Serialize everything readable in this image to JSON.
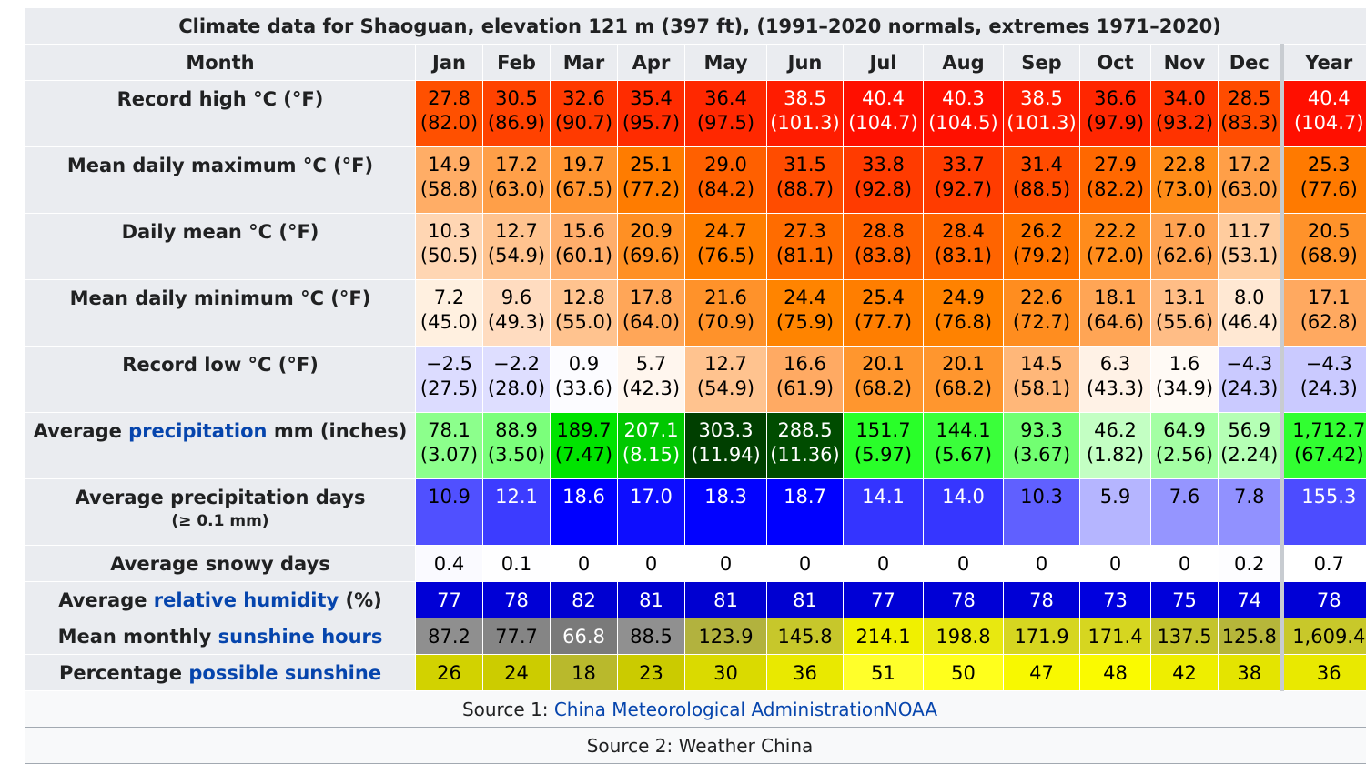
{
  "caption": "Climate data for Shaoguan, elevation 121 m (397 ft), (1991–2020 normals, extremes 1971–2020)",
  "month_header": "Month",
  "months": [
    "Jan",
    "Feb",
    "Mar",
    "Apr",
    "May",
    "Jun",
    "Jul",
    "Aug",
    "Sep",
    "Oct",
    "Nov",
    "Dec"
  ],
  "year_header": "Year",
  "rows": {
    "record_high": {
      "label": "Record high °C (°F)",
      "values": [
        [
          "27.8",
          "(82.0)"
        ],
        [
          "30.5",
          "(86.9)"
        ],
        [
          "32.6",
          "(90.7)"
        ],
        [
          "35.4",
          "(95.7)"
        ],
        [
          "36.4",
          "(97.5)"
        ],
        [
          "38.5",
          "(101.3)"
        ],
        [
          "40.4",
          "(104.7)"
        ],
        [
          "40.3",
          "(104.5)"
        ],
        [
          "38.5",
          "(101.3)"
        ],
        [
          "36.6",
          "(97.9)"
        ],
        [
          "34.0",
          "(93.2)"
        ],
        [
          "28.5",
          "(83.3)"
        ]
      ],
      "year": [
        "40.4",
        "(104.7)"
      ],
      "colors": [
        "#ff5000",
        "#ff4200",
        "#ff3a00",
        "#ff2c00",
        "#ff2800",
        "#ff1c00",
        "#ff0f00",
        "#ff1000",
        "#ff1c00",
        "#ff2600",
        "#ff3300",
        "#ff4c00"
      ],
      "year_color": "#ff0f00",
      "text_colors": [
        "#000000",
        "#000000",
        "#000000",
        "#000000",
        "#000000",
        "#ffffff",
        "#ffffff",
        "#ffffff",
        "#ffffff",
        "#000000",
        "#000000",
        "#000000"
      ],
      "year_text_color": "#ffffff"
    },
    "mean_max": {
      "label": "Mean daily maximum °C (°F)",
      "values": [
        [
          "14.9",
          "(58.8)"
        ],
        [
          "17.2",
          "(63.0)"
        ],
        [
          "19.7",
          "(67.5)"
        ],
        [
          "25.1",
          "(77.2)"
        ],
        [
          "29.0",
          "(84.2)"
        ],
        [
          "31.5",
          "(88.7)"
        ],
        [
          "33.8",
          "(92.8)"
        ],
        [
          "33.7",
          "(92.7)"
        ],
        [
          "31.4",
          "(88.5)"
        ],
        [
          "27.9",
          "(82.2)"
        ],
        [
          "22.8",
          "(73.0)"
        ],
        [
          "17.2",
          "(63.0)"
        ]
      ],
      "year": [
        "25.3",
        "(77.6)"
      ],
      "colors": [
        "#ffad66",
        "#ff9f48",
        "#ff9430",
        "#ff7c00",
        "#ff6000",
        "#ff4c00",
        "#ff3b00",
        "#ff3c00",
        "#ff4c00",
        "#ff6800",
        "#ff8c18",
        "#ff9f48"
      ],
      "year_color": "#ff7a00",
      "text_colors": [
        "#000000",
        "#000000",
        "#000000",
        "#000000",
        "#000000",
        "#000000",
        "#000000",
        "#000000",
        "#000000",
        "#000000",
        "#000000",
        "#000000"
      ],
      "year_text_color": "#000000"
    },
    "daily_mean": {
      "label": "Daily mean °C (°F)",
      "values": [
        [
          "10.3",
          "(50.5)"
        ],
        [
          "12.7",
          "(54.9)"
        ],
        [
          "15.6",
          "(60.1)"
        ],
        [
          "20.9",
          "(69.6)"
        ],
        [
          "24.7",
          "(76.5)"
        ],
        [
          "27.3",
          "(81.1)"
        ],
        [
          "28.8",
          "(83.8)"
        ],
        [
          "28.4",
          "(83.1)"
        ],
        [
          "26.2",
          "(79.2)"
        ],
        [
          "22.2",
          "(72.0)"
        ],
        [
          "17.0",
          "(62.6)"
        ],
        [
          "11.7",
          "(53.1)"
        ]
      ],
      "year": [
        "20.5",
        "(68.9)"
      ],
      "colors": [
        "#ffd6b3",
        "#ffc38f",
        "#ffae6b",
        "#ff9024",
        "#ff7e00",
        "#ff6c00",
        "#ff6100",
        "#ff6400",
        "#ff7400",
        "#ff8c1c",
        "#ffa352",
        "#ffcc9e"
      ],
      "year_color": "#ff922a",
      "text_colors": [
        "#000000",
        "#000000",
        "#000000",
        "#000000",
        "#000000",
        "#000000",
        "#000000",
        "#000000",
        "#000000",
        "#000000",
        "#000000",
        "#000000"
      ],
      "year_text_color": "#000000"
    },
    "mean_min": {
      "label": "Mean daily minimum °C (°F)",
      "values": [
        [
          "7.2",
          "(45.0)"
        ],
        [
          "9.6",
          "(49.3)"
        ],
        [
          "12.8",
          "(55.0)"
        ],
        [
          "17.8",
          "(64.0)"
        ],
        [
          "21.6",
          "(70.9)"
        ],
        [
          "24.4",
          "(75.9)"
        ],
        [
          "25.4",
          "(77.7)"
        ],
        [
          "24.9",
          "(76.8)"
        ],
        [
          "22.6",
          "(72.7)"
        ],
        [
          "18.1",
          "(64.6)"
        ],
        [
          "13.1",
          "(55.6)"
        ],
        [
          "8.0",
          "(46.4)"
        ]
      ],
      "year": [
        "17.1",
        "(62.8)"
      ],
      "colors": [
        "#fff0e0",
        "#ffdcc0",
        "#ffc38f",
        "#ffa658",
        "#ff922a",
        "#ff8400",
        "#ff7e00",
        "#ff8200",
        "#ff8d1f",
        "#ffa555",
        "#ffbd86",
        "#ffe8d3"
      ],
      "year_color": "#ffa960",
      "text_colors": [
        "#000000",
        "#000000",
        "#000000",
        "#000000",
        "#000000",
        "#000000",
        "#000000",
        "#000000",
        "#000000",
        "#000000",
        "#000000",
        "#000000"
      ],
      "year_text_color": "#000000"
    },
    "record_low": {
      "label": "Record low °C (°F)",
      "values": [
        [
          "−2.5",
          "(27.5)"
        ],
        [
          "−2.2",
          "(28.0)"
        ],
        [
          "0.9",
          "(33.6)"
        ],
        [
          "5.7",
          "(42.3)"
        ],
        [
          "12.7",
          "(54.9)"
        ],
        [
          "16.6",
          "(61.9)"
        ],
        [
          "20.1",
          "(68.2)"
        ],
        [
          "20.1",
          "(68.2)"
        ],
        [
          "14.5",
          "(58.1)"
        ],
        [
          "6.3",
          "(43.3)"
        ],
        [
          "1.6",
          "(34.9)"
        ],
        [
          "−4.3",
          "(24.3)"
        ]
      ],
      "year": [
        "−4.3",
        "(24.3)"
      ],
      "colors": [
        "#dcdcff",
        "#dedeff",
        "#fcfcff",
        "#fff6ee",
        "#ffc38f",
        "#ffaa63",
        "#ff962e",
        "#ff962e",
        "#ffb779",
        "#fff2e6",
        "#fffaf5",
        "#cacaff"
      ],
      "year_color": "#cacaff",
      "text_colors": [
        "#000000",
        "#000000",
        "#000000",
        "#000000",
        "#000000",
        "#000000",
        "#000000",
        "#000000",
        "#000000",
        "#000000",
        "#000000",
        "#000000"
      ],
      "year_text_color": "#000000"
    },
    "precip": {
      "label_pre": "Average ",
      "label_link": "precipitation",
      "label_post": " mm (inches)",
      "values": [
        [
          "78.1",
          "(3.07)"
        ],
        [
          "88.9",
          "(3.50)"
        ],
        [
          "189.7",
          "(7.47)"
        ],
        [
          "207.1",
          "(8.15)"
        ],
        [
          "303.3",
          "(11.94)"
        ],
        [
          "288.5",
          "(11.36)"
        ],
        [
          "151.7",
          "(5.97)"
        ],
        [
          "144.1",
          "(5.67)"
        ],
        [
          "93.3",
          "(3.67)"
        ],
        [
          "46.2",
          "(1.82)"
        ],
        [
          "64.9",
          "(2.56)"
        ],
        [
          "56.9",
          "(2.24)"
        ]
      ],
      "year": [
        "1,712.7",
        "(67.42)"
      ],
      "colors": [
        "#8cff8c",
        "#7bff7b",
        "#00e400",
        "#00c800",
        "#003f00",
        "#004c00",
        "#29ff29",
        "#3aff3a",
        "#72ff72",
        "#c3ffc3",
        "#a4ffa4",
        "#b5ffb5"
      ],
      "year_color": "#31ff31",
      "text_colors": [
        "#000000",
        "#000000",
        "#000000",
        "#ffffff",
        "#ffffff",
        "#ffffff",
        "#000000",
        "#000000",
        "#000000",
        "#000000",
        "#000000",
        "#000000"
      ],
      "year_text_color": "#000000"
    },
    "precip_days": {
      "label": "Average precipitation days",
      "label_sub": "(≥ 0.1 mm)",
      "values": [
        "10.9",
        "12.1",
        "18.6",
        "17.0",
        "18.3",
        "18.7",
        "14.1",
        "14.0",
        "10.3",
        "5.9",
        "7.6",
        "7.8"
      ],
      "year": "155.3",
      "colors": [
        "#5050ff",
        "#3c3cff",
        "#0000ff",
        "#0d0dff",
        "#0202ff",
        "#0000ff",
        "#3434ff",
        "#3636ff",
        "#6060ff",
        "#b5b5ff",
        "#9595ff",
        "#9191ff"
      ],
      "year_color": "#4c4cff",
      "text_colors": [
        "#000000",
        "#ffffff",
        "#ffffff",
        "#ffffff",
        "#ffffff",
        "#ffffff",
        "#ffffff",
        "#ffffff",
        "#000000",
        "#000000",
        "#000000",
        "#000000"
      ],
      "year_text_color": "#ffffff"
    },
    "snowy_days": {
      "label": "Average snowy days",
      "values": [
        "0.4",
        "0.1",
        "0",
        "0",
        "0",
        "0",
        "0",
        "0",
        "0",
        "0",
        "0",
        "0.2"
      ],
      "year": "0.7",
      "colors": [
        "#fafaff",
        "#fefeff",
        "#ffffff",
        "#ffffff",
        "#ffffff",
        "#ffffff",
        "#ffffff",
        "#ffffff",
        "#ffffff",
        "#ffffff",
        "#ffffff",
        "#fdfdff"
      ],
      "year_color": "#ffffff",
      "text_colors": [
        "#000000",
        "#000000",
        "#000000",
        "#000000",
        "#000000",
        "#000000",
        "#000000",
        "#000000",
        "#000000",
        "#000000",
        "#000000",
        "#000000"
      ],
      "year_text_color": "#000000"
    },
    "humidity": {
      "label_pre": "Average ",
      "label_link": "relative humidity",
      "label_post": " (%)",
      "values": [
        "77",
        "78",
        "82",
        "81",
        "81",
        "81",
        "77",
        "78",
        "78",
        "73",
        "75",
        "74"
      ],
      "year": "78",
      "colors": [
        "#0000d6",
        "#0000d6",
        "#0000d1",
        "#0000d1",
        "#0000d1",
        "#0000d1",
        "#0000d6",
        "#0000d6",
        "#0000d6",
        "#0000de",
        "#0000da",
        "#0000dc"
      ],
      "year_color": "#0000d6",
      "text_colors": [
        "#ffffff",
        "#ffffff",
        "#ffffff",
        "#ffffff",
        "#ffffff",
        "#ffffff",
        "#ffffff",
        "#ffffff",
        "#ffffff",
        "#ffffff",
        "#ffffff",
        "#ffffff"
      ],
      "year_text_color": "#ffffff"
    },
    "sunshine_hours": {
      "label_pre": "Mean monthly ",
      "label_link": "sunshine hours",
      "label_post": "",
      "values": [
        "87.2",
        "77.7",
        "66.8",
        "88.5",
        "123.9",
        "145.8",
        "214.1",
        "198.8",
        "171.9",
        "171.4",
        "137.5",
        "125.8"
      ],
      "year": "1,609.4",
      "colors": [
        "#8f8f8f",
        "#858585",
        "#7a7a7a",
        "#909090",
        "#b2b23e",
        "#c7c72b",
        "#f0f000",
        "#e8e810",
        "#d6d620",
        "#d6d620",
        "#c4c42d",
        "#b6b63a"
      ],
      "year_color": "#c8c82a",
      "text_colors": [
        "#000000",
        "#000000",
        "#ffffff",
        "#000000",
        "#000000",
        "#000000",
        "#000000",
        "#000000",
        "#000000",
        "#000000",
        "#000000",
        "#000000"
      ],
      "year_text_color": "#000000"
    },
    "possible_sunshine": {
      "label_pre": "Percentage ",
      "label_link": "possible sunshine",
      "label_post": "",
      "values": [
        "26",
        "24",
        "18",
        "23",
        "30",
        "36",
        "51",
        "50",
        "47",
        "48",
        "42",
        "38"
      ],
      "year": "36",
      "colors": [
        "#d2d200",
        "#cccc00",
        "#b9b92c",
        "#cbcb00",
        "#dada00",
        "#e9e900",
        "#ffff2a",
        "#ffff1c",
        "#f8f800",
        "#fafa00",
        "#eeee00",
        "#e4e400"
      ],
      "year_color": "#e9e900",
      "text_colors": [
        "#000000",
        "#000000",
        "#000000",
        "#000000",
        "#000000",
        "#000000",
        "#000000",
        "#000000",
        "#000000",
        "#000000",
        "#000000",
        "#000000"
      ],
      "year_text_color": "#000000"
    }
  },
  "sources": {
    "source1_prefix": "Source 1: ",
    "source1_link": "China Meteorological AdministrationNOAA",
    "source2": "Source 2: Weather China"
  },
  "colors": {
    "header_bg": "#eaecf0",
    "link": "#0645ad",
    "source_bg": "#f8f9fa"
  }
}
